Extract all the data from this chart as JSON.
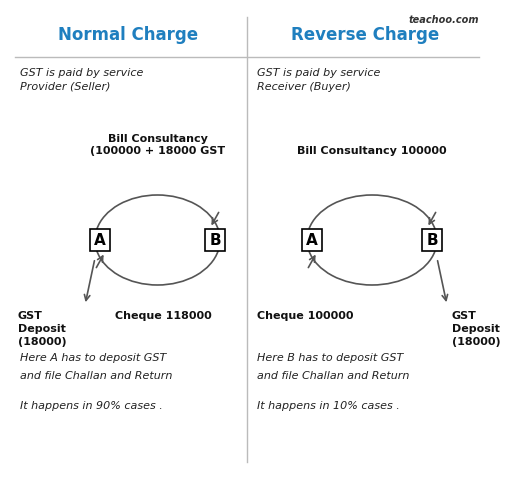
{
  "title_left": "Normal Charge",
  "title_right": "Reverse Charge",
  "title_color": "#1F7FBF",
  "watermark": "teachoo.com",
  "bg_color": "#ffffff",
  "left": {
    "subtitle": "GST is paid by service\nProvider (Seller)",
    "bill_label": "Bill Consultancy\n(100000 + 18000 GST",
    "label_A": "A",
    "label_B": "B",
    "bottom_left_label": "GST\nDeposit\n(18000)",
    "bottom_right_label": "Cheque 118000"
  },
  "right": {
    "subtitle": "GST is paid by service\nReceiver (Buyer)",
    "bill_label": "Bill Consultancy 100000",
    "label_A": "A",
    "label_B": "B",
    "bottom_left_label": "Cheque 100000",
    "bottom_right_label": "GST\nDeposit\n(18000)"
  },
  "footer_left_line1": "Here A has to deposit GST",
  "footer_left_line2": "and file Challan and Return",
  "footer_left_line3": "It happens in 90% cases .",
  "footer_right_line1": "Here B has to deposit GST",
  "footer_right_line2": "and file Challan and Return",
  "footer_right_line3": "It happens in 10% cases ."
}
